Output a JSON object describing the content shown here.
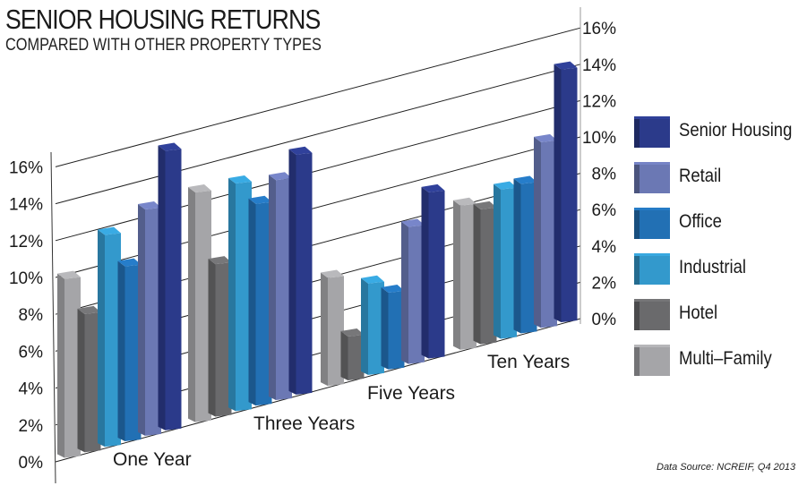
{
  "header": {
    "title": "SENIOR HOUSING RETURNS",
    "subtitle": "COMPARED WITH OTHER PROPERTY TYPES"
  },
  "axes": {
    "left_ticks": [
      "16%",
      "14%",
      "12%",
      "10%",
      "8%",
      "6%",
      "4%",
      "2%",
      "0%"
    ],
    "right_ticks": [
      "16%",
      "14%",
      "12%",
      "10%",
      "8%",
      "6%",
      "4%",
      "2%",
      "0%"
    ]
  },
  "categories": [
    "One Year",
    "Three Years",
    "Five Years",
    "Ten Years"
  ],
  "legend": [
    {
      "label": "Senior Housing",
      "color": "#2b3a8a"
    },
    {
      "label": "Retail",
      "color": "#6b78b4"
    },
    {
      "label": "Office",
      "color": "#2270b4"
    },
    {
      "label": "Industrial",
      "color": "#3399cc"
    },
    {
      "label": "Hotel",
      "color": "#6a6a6c"
    },
    {
      "label": "Multi–Family",
      "color": "#a5a5a8"
    }
  ],
  "source": "Data Source: NCREIF, Q4 2013",
  "chart_data": {
    "type": "bar",
    "title": "SENIOR HOUSING RETURNS",
    "subtitle": "COMPARED WITH OTHER PROPERTY TYPES",
    "xlabel": "",
    "ylabel": "",
    "ylim": [
      0,
      16
    ],
    "yticks": [
      "0%",
      "2%",
      "4%",
      "6%",
      "8%",
      "10%",
      "12%",
      "14%",
      "16%"
    ],
    "grid": true,
    "legend_position": "right",
    "style": "3d-perspective",
    "categories": [
      "One Year",
      "Three Years",
      "Five Years",
      "Ten Years"
    ],
    "series": [
      {
        "name": "Multi-Family",
        "color": "#a5a5a8",
        "values": [
          9.8,
          12.6,
          6.0,
          8.0
        ]
      },
      {
        "name": "Hotel",
        "color": "#6a6a6c",
        "values": [
          7.6,
          8.4,
          2.5,
          7.5
        ]
      },
      {
        "name": "Industrial",
        "color": "#3399cc",
        "values": [
          11.6,
          12.5,
          5.1,
          8.3
        ]
      },
      {
        "name": "Office",
        "color": "#2270b4",
        "values": [
          9.6,
          11.1,
          4.3,
          8.3
        ]
      },
      {
        "name": "Retail",
        "color": "#6b78b4",
        "values": [
          12.4,
          12.1,
          7.6,
          10.3
        ]
      },
      {
        "name": "Senior Housing",
        "color": "#2b3a8a",
        "values": [
          15.3,
          13.2,
          9.2,
          14.0
        ]
      }
    ],
    "source": "Data Source: NCREIF, Q4 2013"
  }
}
